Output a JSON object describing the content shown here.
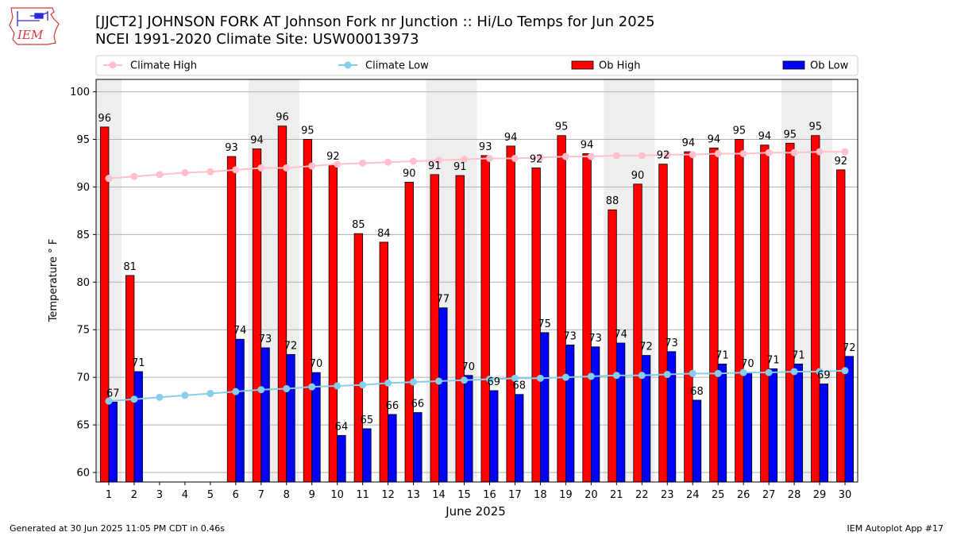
{
  "header": {
    "logo_text": "IEM",
    "title_line1": "[JJCT2] JOHNSON FORK  AT Johnson Fork nr Junction :: Hi/Lo Temps for Jun 2025",
    "title_line2": "NCEI 1991-2020 Climate Site: USW00013973"
  },
  "footer": {
    "generated": "Generated at 30 Jun 2025 11:05 PM CDT in 0.46s",
    "app": "IEM Autoplot App #17"
  },
  "colors": {
    "climate_high": "#ffc0cb",
    "climate_low": "#87ceeb",
    "ob_high": "#ff0000",
    "ob_low": "#0000ff",
    "weekend_shade": "#eeeeee",
    "grid": "#b0b0b0"
  },
  "chart_data": {
    "type": "bar",
    "xlabel": "June 2025",
    "ylabel": "Temperature ° F",
    "ylim": [
      59,
      101.3
    ],
    "yticks": [
      60,
      65,
      70,
      75,
      80,
      85,
      90,
      95,
      100
    ],
    "grid": "horizontal",
    "legend_position": "top",
    "shaded_days": [
      1,
      7,
      8,
      14,
      15,
      21,
      22,
      28,
      29
    ],
    "categories": [
      "1",
      "2",
      "3",
      "4",
      "5",
      "6",
      "7",
      "8",
      "9",
      "10",
      "11",
      "12",
      "13",
      "14",
      "15",
      "16",
      "17",
      "18",
      "19",
      "20",
      "21",
      "22",
      "23",
      "24",
      "25",
      "26",
      "27",
      "28",
      "29",
      "30"
    ],
    "series": [
      {
        "name": "Climate High",
        "kind": "line",
        "values": [
          90.9,
          91.1,
          91.3,
          91.5,
          91.6,
          91.8,
          92.0,
          92.0,
          92.2,
          92.4,
          92.5,
          92.6,
          92.7,
          92.8,
          92.9,
          93.0,
          93.0,
          93.1,
          93.2,
          93.2,
          93.3,
          93.3,
          93.4,
          93.4,
          93.5,
          93.5,
          93.6,
          93.6,
          93.7,
          93.7
        ]
      },
      {
        "name": "Climate Low",
        "kind": "line",
        "values": [
          67.5,
          67.7,
          67.9,
          68.1,
          68.3,
          68.5,
          68.7,
          68.8,
          69.0,
          69.1,
          69.2,
          69.4,
          69.5,
          69.6,
          69.7,
          69.8,
          69.9,
          69.9,
          70.0,
          70.1,
          70.2,
          70.2,
          70.3,
          70.4,
          70.4,
          70.5,
          70.5,
          70.6,
          70.6,
          70.7
        ]
      },
      {
        "name": "Ob High",
        "kind": "bar",
        "values": [
          96.3,
          80.7,
          null,
          null,
          null,
          93.2,
          94.0,
          96.4,
          95.0,
          92.3,
          85.1,
          84.2,
          90.5,
          91.3,
          91.2,
          93.3,
          94.3,
          92.0,
          95.4,
          93.5,
          87.6,
          90.3,
          92.4,
          93.7,
          94.1,
          95.0,
          94.4,
          94.6,
          95.4,
          91.8
        ],
        "labels": [
          "96",
          "81",
          "",
          "",
          "",
          "93",
          "94",
          "96",
          "95",
          "92",
          "85",
          "84",
          "90",
          "91",
          "91",
          "93",
          "94",
          "92",
          "95",
          "94",
          "88",
          "90",
          "92",
          "94",
          "94",
          "95",
          "94",
          "95",
          "95",
          "92"
        ]
      },
      {
        "name": "Ob Low",
        "kind": "bar",
        "values": [
          67.4,
          70.6,
          null,
          null,
          null,
          74.0,
          73.1,
          72.4,
          70.5,
          63.9,
          64.6,
          66.1,
          66.3,
          77.3,
          70.2,
          68.6,
          68.2,
          74.7,
          73.4,
          73.2,
          73.6,
          72.3,
          72.7,
          67.6,
          71.4,
          70.5,
          70.9,
          71.4,
          69.3,
          72.2
        ],
        "labels": [
          "67",
          "71",
          "",
          "",
          "",
          "74",
          "73",
          "72",
          "70",
          "64",
          "65",
          "66",
          "66",
          "77",
          "70",
          "69",
          "68",
          "75",
          "73",
          "73",
          "74",
          "72",
          "73",
          "68",
          "71",
          "70",
          "71",
          "71",
          "69",
          "72"
        ]
      }
    ]
  }
}
